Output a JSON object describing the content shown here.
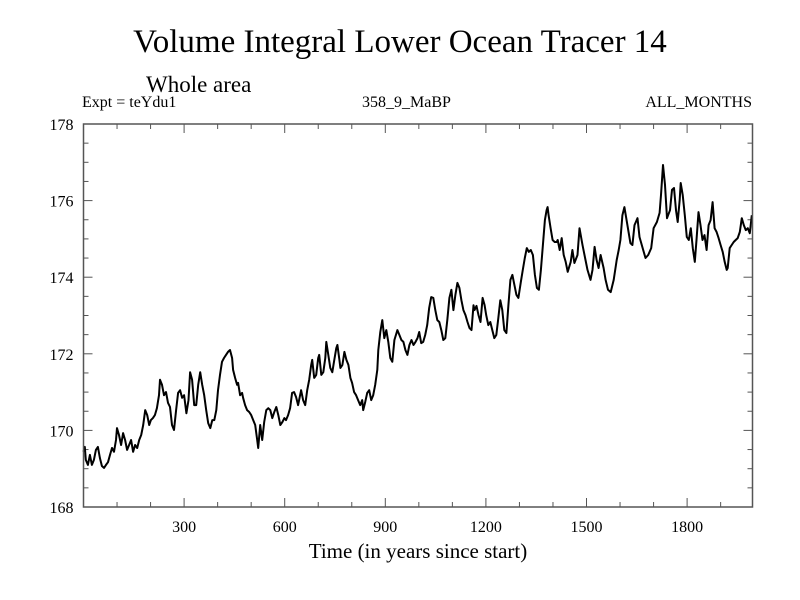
{
  "chart_data": {
    "type": "line",
    "title": "Volume Integral Lower Ocean Tracer 14",
    "subtitle": "Whole area",
    "annotations": {
      "left": "Expt = teYdu1",
      "center": "358_9_MaBP",
      "right": "ALL_MONTHS"
    },
    "xlabel": "Time (in years since start)",
    "ylabel": "",
    "xlim": [
      0,
      1995
    ],
    "ylim": [
      168,
      178
    ],
    "xticks": [
      300,
      600,
      900,
      1200,
      1500,
      1800
    ],
    "xtick_labels": [
      "300",
      "600",
      "900",
      "1200",
      "1500",
      "1800"
    ],
    "x_minor_step": 100,
    "yticks": [
      168,
      170,
      172,
      174,
      176,
      178
    ],
    "ytick_labels": [
      "168",
      "170",
      "172",
      "174",
      "176",
      "178"
    ],
    "y_minor_step": 0.5,
    "grid": false,
    "legend": "none",
    "line_color": "#000000",
    "series": [
      {
        "name": "Volume Integral Lower Ocean Tracer 14",
        "x": [
          0,
          4,
          7,
          13,
          19,
          25,
          31,
          37,
          43,
          49,
          55,
          61,
          67,
          73,
          79,
          85,
          91,
          97,
          100,
          106,
          112,
          118,
          124,
          130,
          136,
          142,
          148,
          154,
          160,
          166,
          172,
          178,
          184,
          190,
          196,
          201,
          207,
          213,
          219,
          225,
          228,
          234,
          240,
          246,
          252,
          258,
          264,
          270,
          276,
          282,
          288,
          294,
          300,
          307,
          313,
          318,
          324,
          330,
          336,
          342,
          348,
          354,
          360,
          366,
          372,
          378,
          384,
          390,
          396,
          401,
          407,
          413,
          419,
          425,
          431,
          437,
          443,
          446,
          452,
          458,
          461,
          467,
          473,
          476,
          482,
          488,
          494,
          500,
          506,
          512,
          518,
          521,
          527,
          533,
          539,
          545,
          551,
          557,
          563,
          569,
          575,
          581,
          587,
          593,
          599,
          604,
          610,
          616,
          622,
          628,
          634,
          640,
          649,
          655,
          661,
          667,
          673,
          679,
          682,
          688,
          694,
          700,
          703,
          709,
          715,
          721,
          724,
          730,
          736,
          742,
          748,
          754,
          757,
          763,
          766,
          772,
          778,
          784,
          790,
          796,
          801,
          807,
          813,
          819,
          825,
          831,
          834,
          840,
          846,
          852,
          858,
          864,
          870,
          876,
          879,
          885,
          891,
          897,
          903,
          909,
          915,
          921,
          927,
          936,
          942,
          948,
          954,
          960,
          966,
          972,
          978,
          984,
          990,
          996,
          1001,
          1007,
          1013,
          1019,
          1025,
          1031,
          1037,
          1043,
          1049,
          1055,
          1061,
          1067,
          1073,
          1079,
          1085,
          1091,
          1097,
          1103,
          1109,
          1115,
          1121,
          1127,
          1133,
          1139,
          1145,
          1151,
          1157,
          1163,
          1166,
          1172,
          1178,
          1184,
          1190,
          1196,
          1201,
          1207,
          1213,
          1219,
          1225,
          1231,
          1237,
          1243,
          1249,
          1255,
          1261,
          1267,
          1273,
          1279,
          1285,
          1291,
          1297,
          1304,
          1310,
          1316,
          1322,
          1328,
          1334,
          1340,
          1346,
          1352,
          1358,
          1364,
          1370,
          1376,
          1381,
          1384,
          1387,
          1393,
          1399,
          1405,
          1411,
          1414,
          1420,
          1426,
          1432,
          1438,
          1444,
          1453,
          1458,
          1464,
          1473,
          1479,
          1488,
          1497,
          1503,
          1512,
          1518,
          1524,
          1530,
          1536,
          1542,
          1551,
          1557,
          1564,
          1572,
          1581,
          1590,
          1596,
          1601,
          1607,
          1613,
          1622,
          1631,
          1637,
          1643,
          1652,
          1658,
          1669,
          1676,
          1684,
          1693,
          1700,
          1710,
          1718,
          1722,
          1728,
          1734,
          1740,
          1749,
          1755,
          1761,
          1767,
          1772,
          1778,
          1781,
          1787,
          1793,
          1799,
          1805,
          1811,
          1817,
          1823,
          1828,
          1834,
          1840,
          1846,
          1852,
          1858,
          1864,
          1870,
          1876,
          1882,
          1888,
          1894,
          1900,
          1906,
          1912,
          1918,
          1921,
          1927,
          1933,
          1939,
          1945,
          1951,
          1957,
          1963,
          1969,
          1975,
          1981,
          1987,
          1993
        ],
        "y": [
          169.44,
          169.57,
          169.23,
          169.1,
          169.36,
          169.1,
          169.23,
          169.49,
          169.57,
          169.28,
          169.07,
          169.02,
          169.1,
          169.17,
          169.36,
          169.54,
          169.44,
          169.75,
          170.06,
          169.88,
          169.62,
          169.93,
          169.75,
          169.49,
          169.62,
          169.75,
          169.44,
          169.62,
          169.54,
          169.75,
          169.88,
          170.14,
          170.53,
          170.4,
          170.14,
          170.27,
          170.32,
          170.4,
          170.58,
          170.92,
          171.32,
          171.19,
          170.92,
          171.0,
          170.72,
          170.61,
          170.14,
          170.01,
          170.53,
          170.98,
          171.05,
          170.85,
          170.92,
          170.45,
          170.79,
          171.52,
          171.32,
          170.66,
          170.66,
          171.19,
          171.52,
          171.19,
          170.92,
          170.53,
          170.19,
          170.06,
          170.27,
          170.27,
          170.53,
          171.05,
          171.45,
          171.79,
          171.89,
          171.97,
          172.05,
          172.1,
          171.89,
          171.58,
          171.37,
          171.19,
          171.24,
          170.92,
          170.98,
          170.85,
          170.66,
          170.53,
          170.48,
          170.4,
          170.27,
          170.14,
          169.75,
          169.54,
          170.14,
          169.75,
          170.22,
          170.53,
          170.58,
          170.53,
          170.32,
          170.48,
          170.61,
          170.4,
          170.14,
          170.22,
          170.32,
          170.27,
          170.4,
          170.58,
          170.98,
          171.0,
          170.87,
          170.66,
          171.05,
          170.79,
          170.66,
          171.05,
          171.32,
          171.71,
          171.84,
          171.37,
          171.45,
          171.89,
          171.97,
          171.45,
          171.52,
          171.89,
          172.31,
          171.97,
          171.63,
          171.52,
          171.84,
          172.15,
          172.23,
          171.84,
          171.63,
          171.71,
          172.05,
          171.84,
          171.71,
          171.37,
          171.24,
          171.0,
          170.92,
          170.79,
          170.66,
          170.79,
          170.53,
          170.74,
          170.98,
          171.05,
          170.79,
          170.92,
          171.19,
          171.58,
          172.1,
          172.57,
          172.88,
          172.41,
          172.62,
          172.31,
          171.89,
          171.79,
          172.36,
          172.62,
          172.49,
          172.36,
          172.31,
          172.1,
          171.97,
          172.23,
          172.36,
          172.23,
          172.31,
          172.41,
          172.57,
          172.28,
          172.31,
          172.49,
          172.75,
          173.2,
          173.48,
          173.46,
          173.14,
          172.88,
          172.83,
          172.62,
          172.36,
          172.41,
          172.88,
          173.46,
          173.67,
          173.14,
          173.54,
          173.85,
          173.72,
          173.4,
          173.14,
          173.01,
          172.83,
          172.67,
          172.62,
          173.27,
          173.14,
          173.25,
          173.01,
          172.83,
          173.46,
          173.27,
          173.01,
          172.75,
          172.83,
          172.62,
          172.41,
          172.49,
          172.93,
          173.4,
          173.14,
          172.62,
          172.54,
          173.27,
          173.93,
          174.06,
          173.8,
          173.54,
          173.46,
          173.87,
          174.19,
          174.5,
          174.76,
          174.66,
          174.71,
          174.58,
          174.06,
          173.72,
          173.67,
          174.19,
          174.84,
          175.49,
          175.75,
          175.83,
          175.62,
          175.28,
          174.97,
          174.92,
          174.92,
          174.97,
          174.71,
          175.02,
          174.58,
          174.4,
          174.14,
          174.4,
          174.71,
          174.37,
          174.58,
          175.28,
          174.84,
          174.45,
          174.19,
          173.93,
          174.19,
          174.79,
          174.45,
          174.24,
          174.58,
          174.24,
          173.93,
          173.67,
          173.61,
          173.93,
          174.45,
          174.71,
          174.97,
          175.62,
          175.83,
          175.36,
          174.89,
          174.84,
          175.36,
          175.54,
          175.05,
          174.71,
          174.5,
          174.58,
          174.76,
          175.28,
          175.44,
          175.68,
          176.15,
          176.93,
          176.41,
          175.54,
          175.75,
          176.28,
          176.33,
          175.75,
          175.44,
          176.02,
          176.46,
          176.15,
          175.62,
          175.05,
          174.97,
          175.28,
          174.76,
          174.4,
          174.97,
          175.7,
          175.36,
          174.97,
          175.1,
          174.71,
          175.36,
          175.49,
          175.96,
          175.28,
          175.18,
          175.02,
          174.84,
          174.66,
          174.4,
          174.19,
          174.24,
          174.76,
          174.84,
          174.92,
          174.97,
          175.02,
          175.18,
          175.54,
          175.36,
          175.23,
          175.28,
          175.15,
          175.62
        ]
      }
    ]
  }
}
